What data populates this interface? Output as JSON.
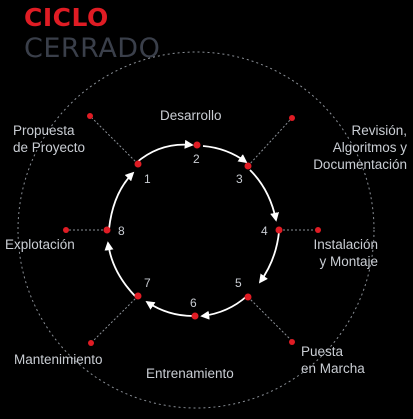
{
  "title": {
    "line1": "CICLO",
    "line2": "CERRADO"
  },
  "colors": {
    "background": "#000000",
    "accent": "#e01c24",
    "title_secondary": "#3a3f4a",
    "text": "#c9cdd3",
    "ring": "#ffffff",
    "dashed": "#8a8f96"
  },
  "steps": [
    {
      "number": "1",
      "label_lines": [
        "Propuesta",
        "de Proyecto"
      ]
    },
    {
      "number": "2",
      "label_lines": [
        "Desarrollo"
      ]
    },
    {
      "number": "3",
      "label_lines": [
        "Revisión,",
        "Algoritmos y",
        "Documentación"
      ]
    },
    {
      "number": "4",
      "label_lines": [
        "Instalación",
        "y Montaje"
      ]
    },
    {
      "number": "5",
      "label_lines": [
        "Puesta",
        "en Marcha"
      ]
    },
    {
      "number": "6",
      "label_lines": [
        "Entrenamiento"
      ]
    },
    {
      "number": "7",
      "label_lines": [
        "Mantenimiento"
      ]
    },
    {
      "number": "8",
      "label_lines": [
        "Explotación"
      ]
    }
  ]
}
